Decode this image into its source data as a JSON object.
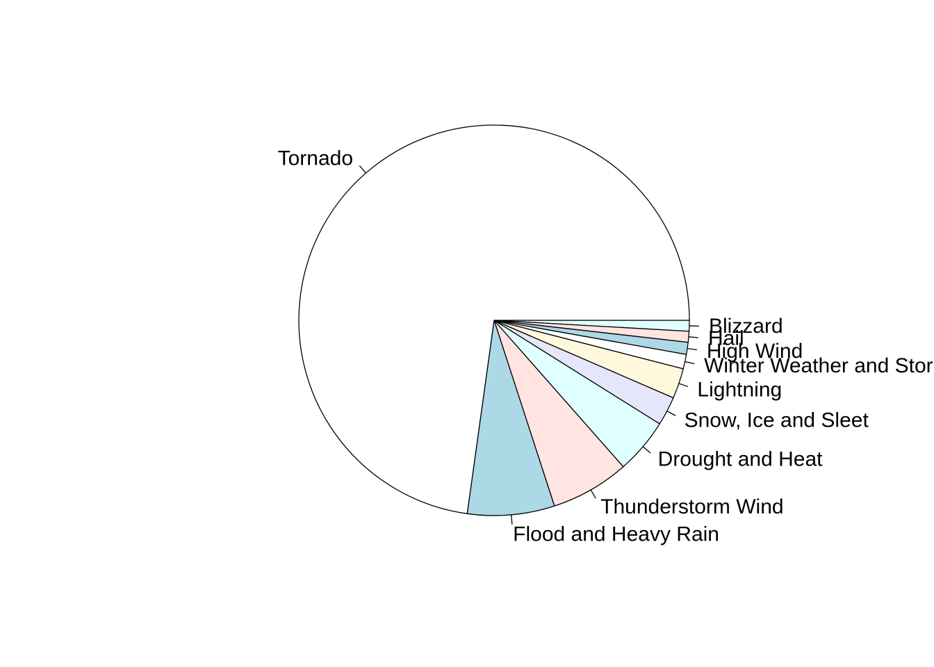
{
  "chart_data": {
    "type": "pie",
    "direction": "clockwise",
    "start": "3 o'clock",
    "labels": [
      "Blizzard",
      "Hail",
      "High Wind",
      "Winter Weather and Storm",
      "Lightning",
      "Snow, Ice and Sleet",
      "Drought and Heat",
      "Thunderstorm Wind",
      "Flood and Heavy Rain",
      "Tornado"
    ],
    "values": [
      0.9,
      0.9,
      1.0,
      1.2,
      2.5,
      2.4,
      4.6,
      6.5,
      7.2,
      72.8
    ],
    "colors": [
      "#E0FFFF",
      "#FFE4E1",
      "#ADD8E6",
      "#FFFFFF",
      "#FFF8DC",
      "#E6E6FA",
      "#E0FFFF",
      "#FFE4E1",
      "#ADD8E6",
      "#FFFFFF"
    ]
  }
}
